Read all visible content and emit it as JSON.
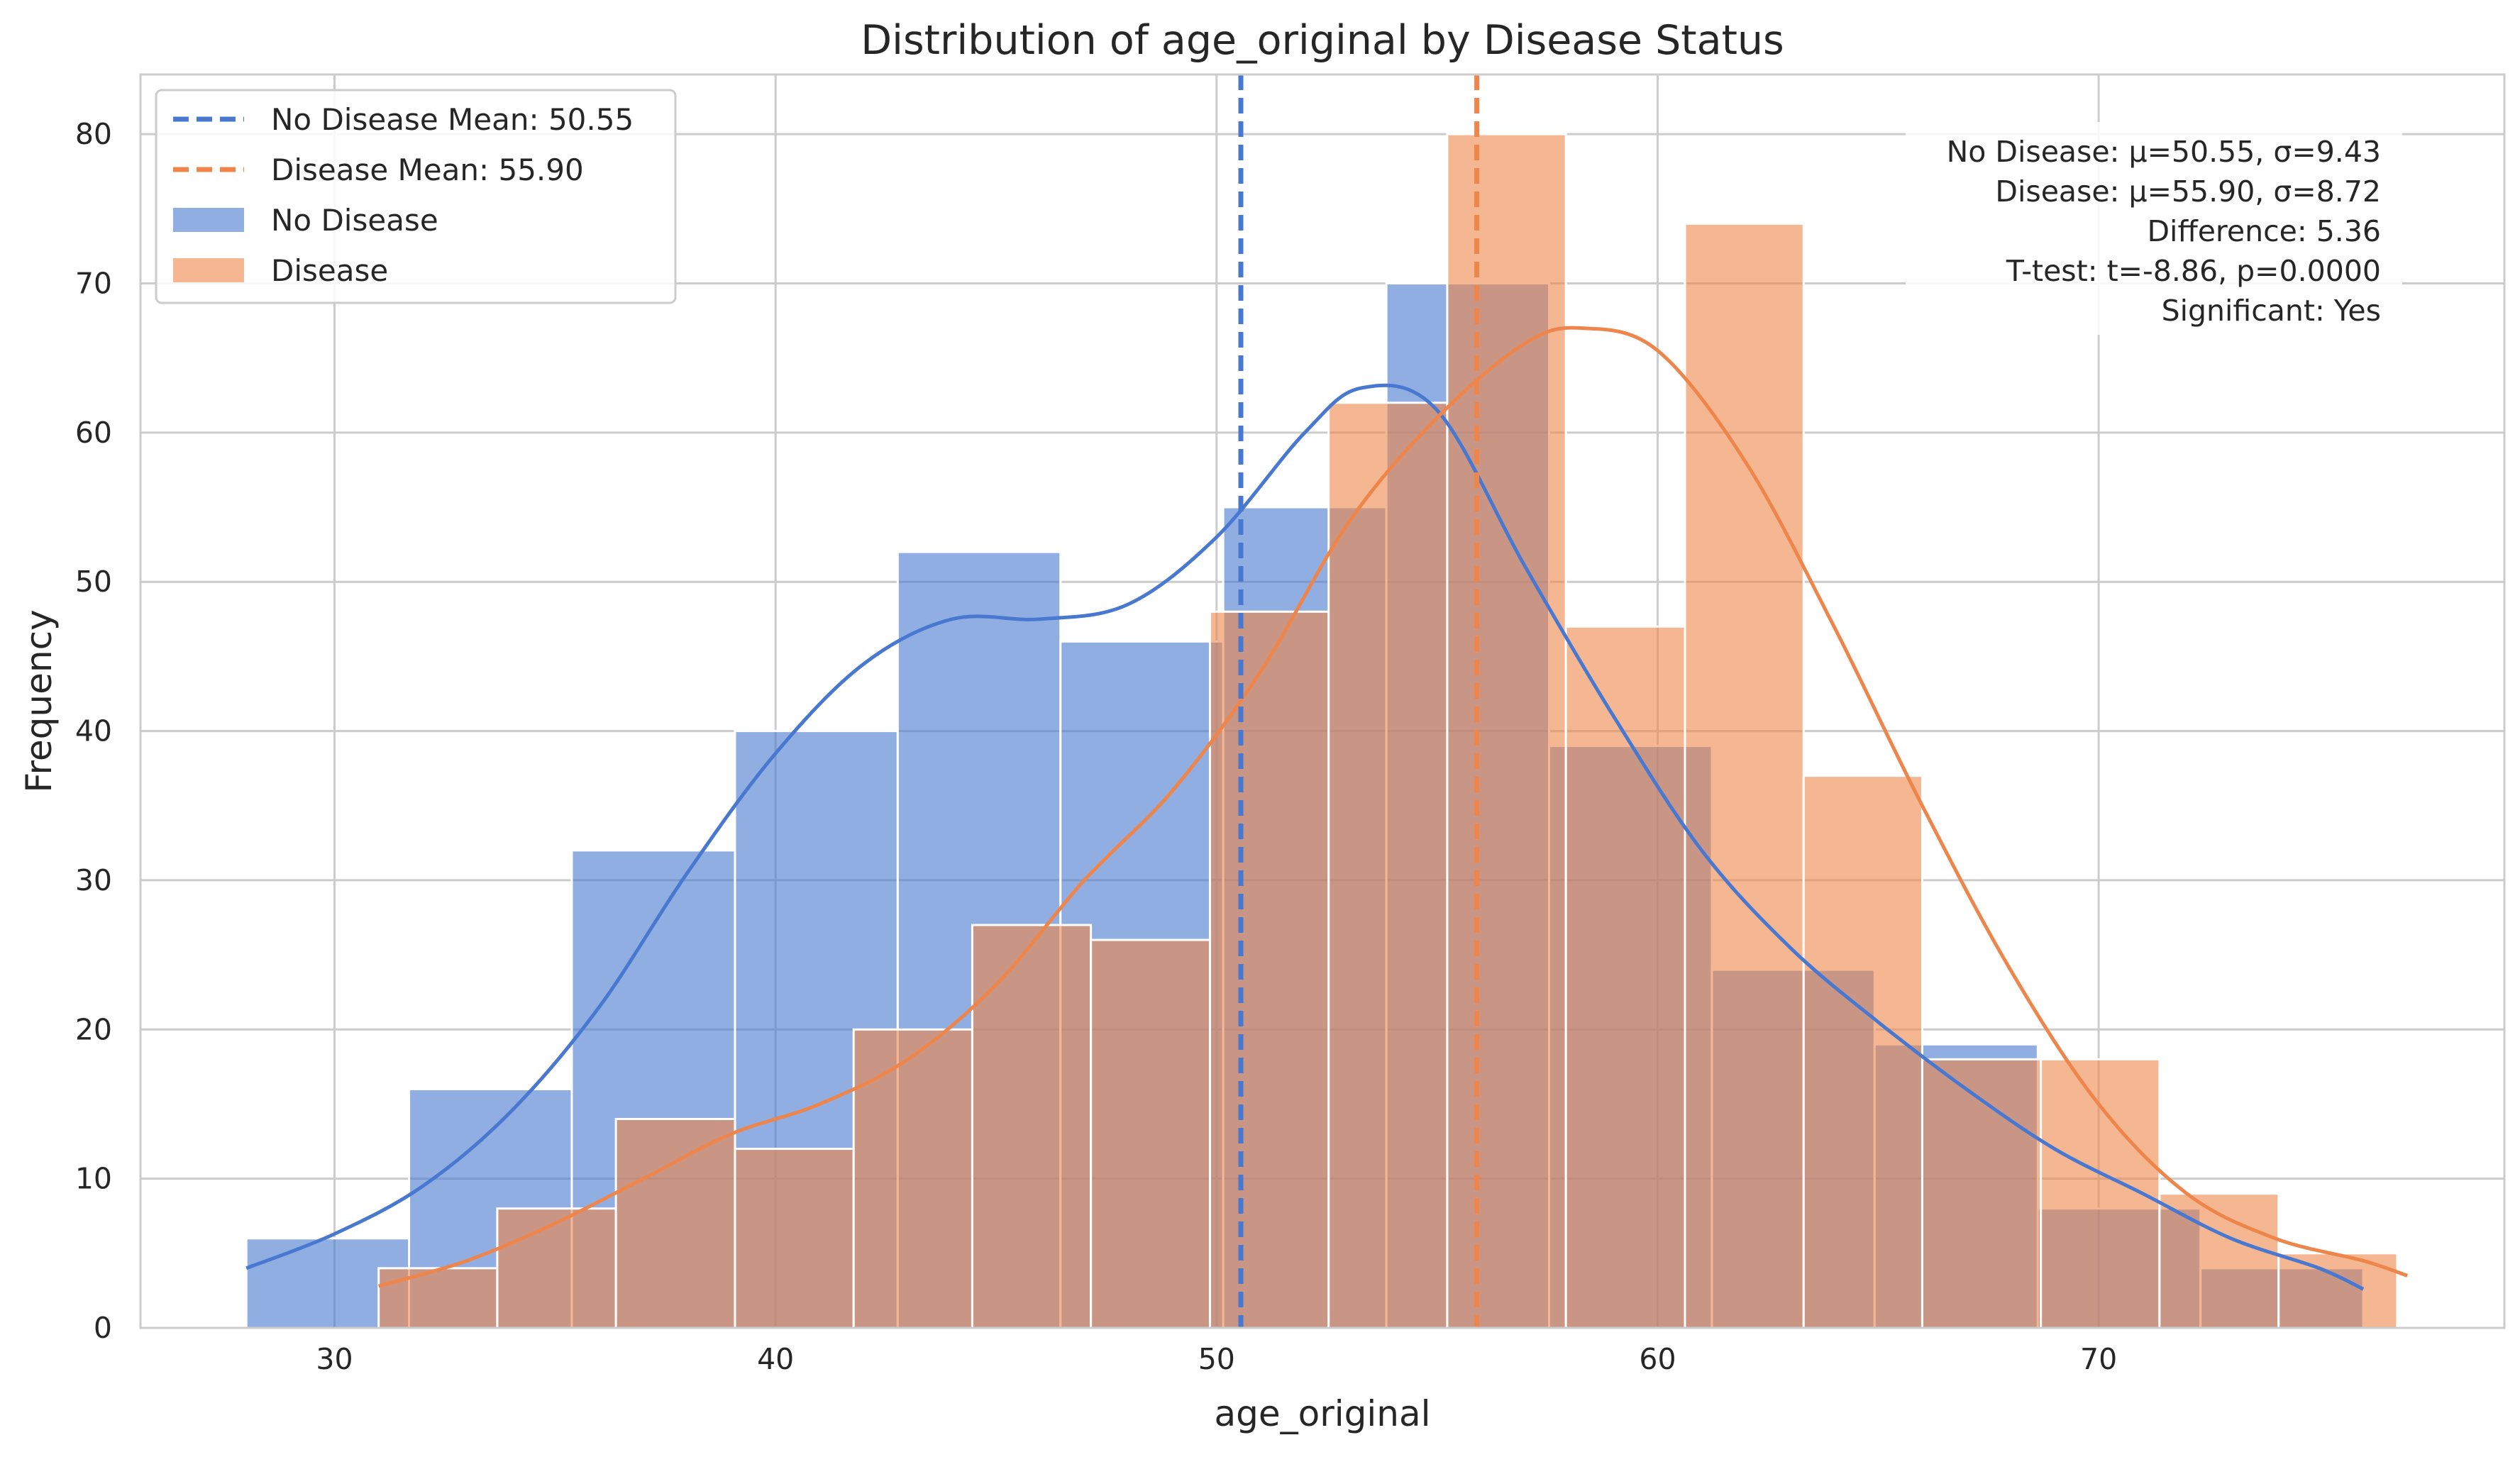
{
  "chart_data": {
    "type": "histogram",
    "title": "Distribution of age_original by Disease Status",
    "xlabel": "age_original",
    "ylabel": "Frequency",
    "xlim": [
      25.6,
      79.2
    ],
    "ylim": [
      0,
      84
    ],
    "xticks": [
      30,
      40,
      50,
      60,
      70
    ],
    "yticks": [
      0,
      10,
      20,
      30,
      40,
      50,
      60,
      70,
      80
    ],
    "grid": true,
    "legend_position": "upper left",
    "series": [
      {
        "name": "No Disease",
        "color": "#4878cf",
        "bin_edges": [
          28.0,
          31.69,
          35.38,
          39.08,
          42.77,
          46.46,
          50.15,
          53.85,
          57.54,
          61.23,
          64.92,
          68.62,
          72.31,
          76.0
        ],
        "counts": [
          6,
          16,
          32,
          40,
          52,
          46,
          55,
          70,
          39,
          24,
          19,
          8,
          4
        ],
        "kde": [
          [
            28.0,
            4
          ],
          [
            30,
            6.3
          ],
          [
            32,
            9.5
          ],
          [
            34,
            14.5
          ],
          [
            36,
            21.5
          ],
          [
            38,
            30.5
          ],
          [
            40,
            38.5
          ],
          [
            42,
            44.5
          ],
          [
            44,
            47.5
          ],
          [
            46,
            47.5
          ],
          [
            48,
            48.5
          ],
          [
            50,
            53
          ],
          [
            52,
            60
          ],
          [
            53.3,
            63
          ],
          [
            55,
            61.5
          ],
          [
            57,
            51
          ],
          [
            59,
            41
          ],
          [
            61,
            32
          ],
          [
            63,
            25.5
          ],
          [
            65,
            20.5
          ],
          [
            67,
            16
          ],
          [
            69,
            12
          ],
          [
            71,
            9
          ],
          [
            73,
            6
          ],
          [
            75,
            4
          ],
          [
            76,
            2.6
          ]
        ],
        "mean": 50.55,
        "mean_label": "No Disease Mean: 50.55"
      },
      {
        "name": "Disease",
        "color": "#ee854a",
        "bin_edges": [
          31.0,
          33.69,
          36.38,
          39.08,
          41.77,
          44.46,
          47.15,
          49.85,
          52.54,
          55.23,
          57.92,
          60.62,
          63.31,
          66.0,
          68.69,
          71.38,
          74.08,
          76.77
        ],
        "counts": [
          4,
          8,
          14,
          12,
          20,
          27,
          26,
          48,
          62,
          80,
          47,
          74,
          37,
          18,
          18,
          9,
          5
        ],
        "kde": [
          [
            31.0,
            2.8
          ],
          [
            33,
            4.5
          ],
          [
            35,
            7
          ],
          [
            37,
            10
          ],
          [
            39,
            13
          ],
          [
            41,
            15
          ],
          [
            43,
            18
          ],
          [
            45,
            23
          ],
          [
            47,
            30
          ],
          [
            49,
            36
          ],
          [
            51,
            44
          ],
          [
            53,
            54
          ],
          [
            55,
            61
          ],
          [
            57,
            66
          ],
          [
            58.3,
            67
          ],
          [
            60,
            65.5
          ],
          [
            62,
            58
          ],
          [
            64,
            47
          ],
          [
            66,
            35
          ],
          [
            68,
            24
          ],
          [
            70,
            15
          ],
          [
            72,
            9
          ],
          [
            74,
            6
          ],
          [
            76,
            4.5
          ],
          [
            77,
            3.5
          ]
        ],
        "mean": 55.9,
        "mean_label": "Disease Mean: 55.90"
      }
    ],
    "stats_box": [
      "No Disease: μ=50.55, σ=9.43",
      "Disease: μ=55.90, σ=8.72",
      "Difference: 5.36",
      "T-test: t=-8.86, p=0.0000",
      "Significant: Yes"
    ]
  }
}
